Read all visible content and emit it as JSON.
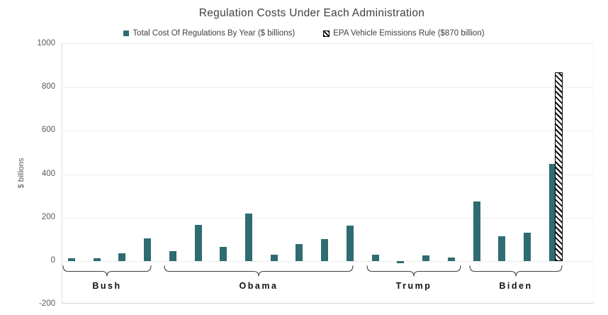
{
  "title": "Regulation Costs Under Each Administration",
  "legend": [
    {
      "label": "Total Cost Of Regulations By Year ($ billions)",
      "swatch": "solid-teal",
      "color": "#2E6C72"
    },
    {
      "label": "EPA Vehicle Emissions Rule ($870 billion)",
      "swatch": "black-hatched",
      "color": "#000000"
    }
  ],
  "chart_data": {
    "type": "bar",
    "title": "Regulation Costs Under Each Administration",
    "xlabel": "",
    "ylabel": "$ billions",
    "ylim": [
      -200,
      1000
    ],
    "yticks": [
      -200,
      0,
      200,
      400,
      600,
      800,
      1000
    ],
    "grid": "horizontal",
    "legend_position": "top",
    "bar_color": "#2E6C72",
    "groups": [
      {
        "label": "Bush",
        "values": [
          12,
          13,
          37,
          105
        ]
      },
      {
        "label": "Obama",
        "values": [
          47,
          167,
          65,
          220,
          30,
          80,
          100,
          163
        ]
      },
      {
        "label": "Trump",
        "values": [
          30,
          -10,
          27,
          15
        ]
      },
      {
        "label": "Biden",
        "values": [
          275,
          116,
          130,
          448
        ]
      }
    ],
    "series": [
      {
        "name": "Total Cost Of Regulations By Year ($ billions)",
        "values": [
          12,
          13,
          37,
          105,
          47,
          167,
          65,
          220,
          30,
          80,
          100,
          163,
          30,
          -10,
          27,
          15,
          275,
          116,
          130,
          448
        ]
      },
      {
        "name": "EPA Vehicle Emissions Rule ($870 billion)",
        "values": [
          null,
          null,
          null,
          null,
          null,
          null,
          null,
          null,
          null,
          null,
          null,
          null,
          null,
          null,
          null,
          null,
          null,
          null,
          null,
          870
        ]
      }
    ]
  }
}
